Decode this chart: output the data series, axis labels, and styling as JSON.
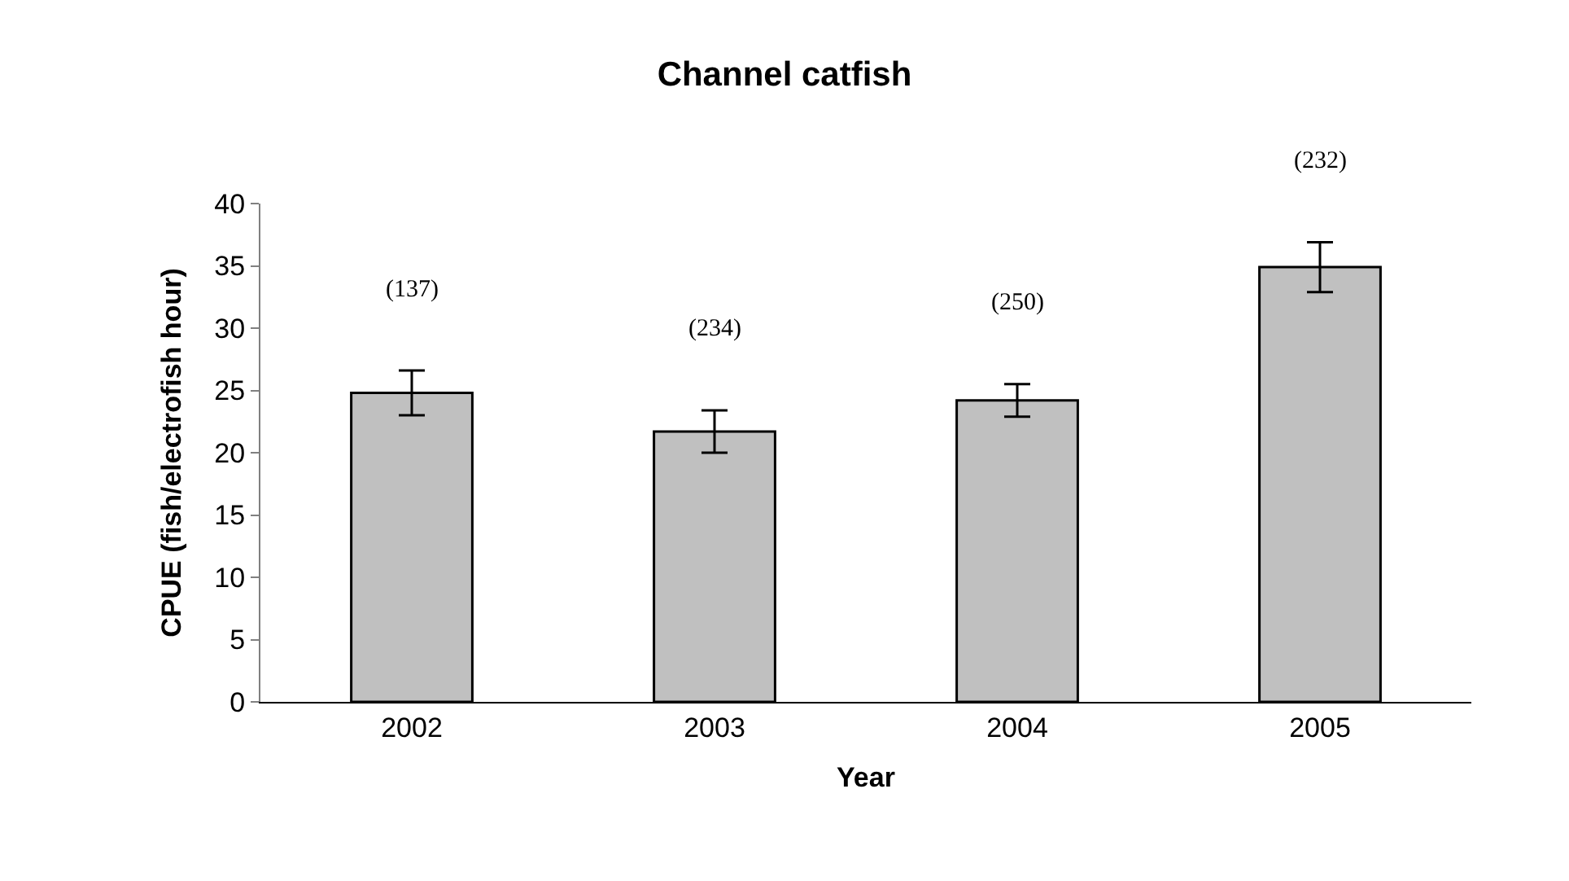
{
  "chart_data": {
    "type": "bar",
    "title": "Channel catfish",
    "xlabel": "Year",
    "ylabel": "CPUE (fish/electrofish hour)",
    "categories": [
      "2002",
      "2003",
      "2004",
      "2005"
    ],
    "series": [
      {
        "color": "#c0c0c0",
        "values": [
          24.8,
          21.7,
          24.2,
          34.9
        ],
        "errors": [
          1.8,
          1.7,
          1.3,
          2.0
        ]
      }
    ],
    "ylim": [
      0,
      40
    ],
    "yticks": [
      0,
      5,
      10,
      15,
      20,
      25,
      30,
      35,
      40
    ],
    "annotations": [
      "(137)",
      "(234)",
      "(250)",
      "(232)"
    ]
  }
}
